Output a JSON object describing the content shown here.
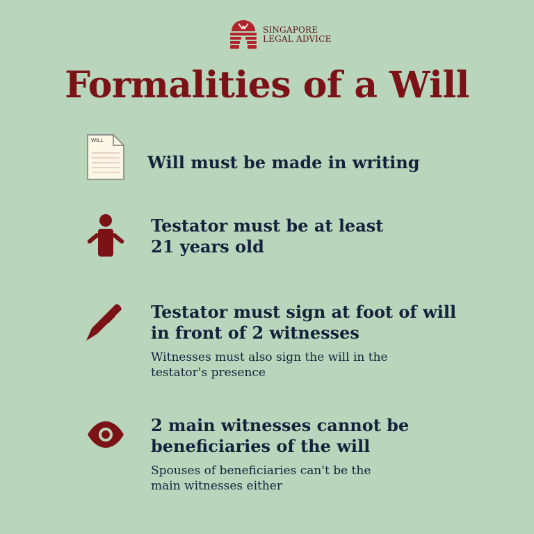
{
  "brand": {
    "line1": "SINGAPORE",
    "line2": "LEGAL ADVICE",
    "color": "#7a1216"
  },
  "title": "Formalities of a Will",
  "colors": {
    "background": "#b9d6bd",
    "accent": "#7a1216",
    "text": "#14213a"
  },
  "items": [
    {
      "icon": "will-document-icon",
      "icon_label": "WILL",
      "heading": "Will must be made in writing",
      "sub": ""
    },
    {
      "icon": "person-icon",
      "heading": "Testator must be at least\n21 years old",
      "sub": ""
    },
    {
      "icon": "pen-icon",
      "heading": "Testator must sign at foot of will\nin front of 2 witnesses",
      "sub": "Witnesses must also sign the will in the\ntestator's presence"
    },
    {
      "icon": "eye-icon",
      "heading": "2 main witnesses cannot be\nbeneficiaries of the will",
      "sub": "Spouses of beneficiaries can't be the\nmain witnesses either"
    }
  ]
}
